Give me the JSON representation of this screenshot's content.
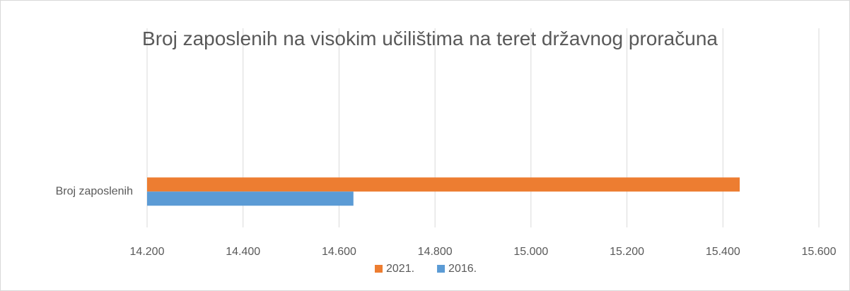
{
  "chart_data": {
    "type": "barh",
    "title": "Broj zaposlenih na visokim učilištima na teret državnog proračuna",
    "categories": [
      "Broj zaposlenih"
    ],
    "series": [
      {
        "name": "2021.",
        "color": "#ed7d31",
        "values": [
          15435
        ]
      },
      {
        "name": "2016.",
        "color": "#5b9bd5",
        "values": [
          14630
        ]
      }
    ],
    "xlim": [
      14200,
      15600
    ],
    "xticks": [
      {
        "value": 14200,
        "label": "14.200"
      },
      {
        "value": 14400,
        "label": "14.400"
      },
      {
        "value": 14600,
        "label": "14.600"
      },
      {
        "value": 14800,
        "label": "14.800"
      },
      {
        "value": 15000,
        "label": "15.000"
      },
      {
        "value": 15200,
        "label": "15.200"
      },
      {
        "value": 15400,
        "label": "15.400"
      },
      {
        "value": 15600,
        "label": "15.600"
      }
    ],
    "grid": true,
    "legend": "bottom"
  }
}
